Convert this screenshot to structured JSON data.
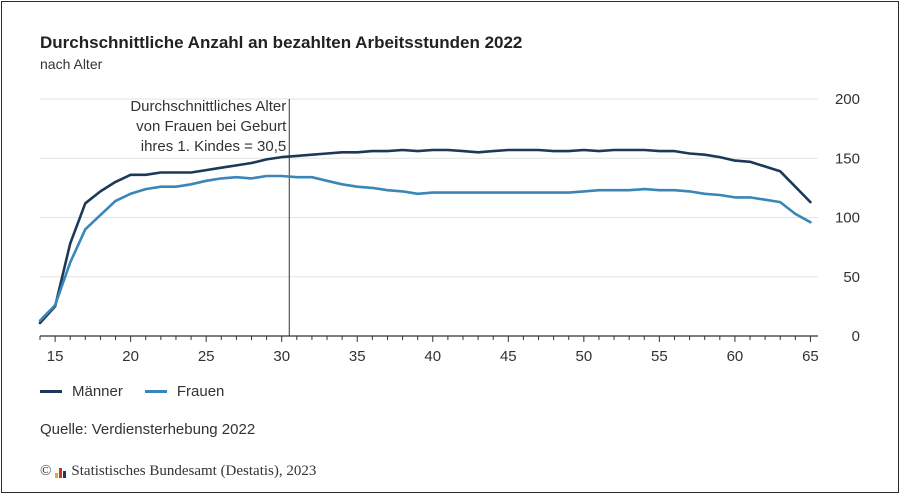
{
  "colors": {
    "maenner": "#1c3a57",
    "frauen": "#3a86b8",
    "grid": "#e3e3e3",
    "axis": "#333333"
  },
  "footer": {
    "source": "Quelle: Verdiensterhebung 2022",
    "copyright_symbol": "©",
    "copyright_text": "Statistisches Bundesamt (Destatis), 2023",
    "logo_icon": "destatis-bars-icon"
  },
  "chart_data": {
    "type": "line",
    "title": "Durchschnittliche Anzahl an bezahlten Arbeitsstunden 2022",
    "subtitle": "nach Alter",
    "xlabel": "",
    "ylabel": "",
    "xlim": [
      14,
      65.5
    ],
    "ylim": [
      0,
      200
    ],
    "xticks": [
      15,
      20,
      25,
      30,
      35,
      40,
      45,
      50,
      55,
      60,
      65
    ],
    "yticks": [
      0,
      50,
      100,
      150,
      200
    ],
    "grid": true,
    "x": [
      14,
      15,
      16,
      17,
      18,
      19,
      20,
      21,
      22,
      23,
      24,
      25,
      26,
      27,
      28,
      29,
      30,
      31,
      32,
      33,
      34,
      35,
      36,
      37,
      38,
      39,
      40,
      41,
      42,
      43,
      44,
      45,
      46,
      47,
      48,
      49,
      50,
      51,
      52,
      53,
      54,
      55,
      56,
      57,
      58,
      59,
      60,
      61,
      62,
      63,
      64,
      65
    ],
    "series": [
      {
        "name": "Männer",
        "values": [
          11,
          25,
          78,
          112,
          122,
          130,
          136,
          136,
          138,
          138,
          138,
          140,
          142,
          144,
          146,
          149,
          151,
          152,
          153,
          154,
          155,
          155,
          156,
          156,
          157,
          156,
          157,
          157,
          156,
          155,
          156,
          157,
          157,
          157,
          156,
          156,
          157,
          156,
          157,
          157,
          157,
          156,
          156,
          154,
          153,
          151,
          148,
          147,
          143,
          139,
          126,
          113
        ]
      },
      {
        "name": "Frauen",
        "values": [
          13,
          26,
          62,
          90,
          102,
          114,
          120,
          124,
          126,
          126,
          128,
          131,
          133,
          134,
          133,
          135,
          135,
          134,
          134,
          131,
          128,
          126,
          125,
          123,
          122,
          120,
          121,
          121,
          121,
          121,
          121,
          121,
          121,
          121,
          121,
          121,
          122,
          123,
          123,
          123,
          124,
          123,
          123,
          122,
          120,
          119,
          117,
          117,
          115,
          113,
          103,
          96
        ]
      }
    ],
    "annotation": {
      "x": 30.5,
      "lines": [
        "Durchschnittliches Alter",
        "von Frauen bei Geburt",
        "ihres 1. Kindes = 30,5"
      ]
    },
    "legend_position": "bottom-left"
  }
}
